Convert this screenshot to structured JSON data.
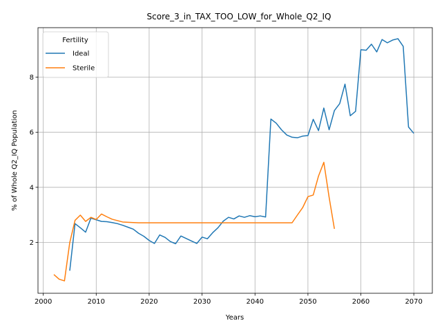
{
  "chart_data": {
    "type": "line",
    "title": "Score_3_in_TAX_TOO_LOW_for_Whole_Q2_IQ",
    "xlabel": "Years",
    "ylabel": "% of Whole Q2_IQ Population",
    "xlim": [
      1999,
      2073.5
    ],
    "ylim": [
      0.15,
      9.8
    ],
    "xticks": [
      2000,
      2010,
      2020,
      2030,
      2040,
      2050,
      2060,
      2070
    ],
    "yticks": [
      2,
      4,
      6,
      8
    ],
    "grid": true,
    "legend": {
      "title": "Fertility",
      "placement": "top-left"
    },
    "series": [
      {
        "name": "Ideal",
        "color": "#1f77b4",
        "x": [
          2005,
          2006,
          2007,
          2008,
          2009,
          2010,
          2011,
          2012,
          2013,
          2014,
          2015,
          2016,
          2017,
          2018,
          2019,
          2020,
          2021,
          2022,
          2023,
          2024,
          2025,
          2026,
          2027,
          2028,
          2029,
          2030,
          2031,
          2032,
          2033,
          2034,
          2035,
          2036,
          2037,
          2038,
          2039,
          2040,
          2041,
          2042,
          2043,
          2044,
          2045,
          2046,
          2047,
          2048,
          2049,
          2050,
          2051,
          2052,
          2053,
          2054,
          2055,
          2056,
          2057,
          2058,
          2059,
          2060,
          2061,
          2062,
          2063,
          2064,
          2065,
          2066,
          2067,
          2068,
          2069,
          2070
        ],
        "values": [
          0.97,
          2.68,
          2.53,
          2.37,
          2.88,
          2.82,
          2.76,
          2.75,
          2.72,
          2.68,
          2.62,
          2.55,
          2.48,
          2.33,
          2.22,
          2.07,
          1.96,
          2.27,
          2.18,
          2.03,
          1.95,
          2.23,
          2.14,
          2.05,
          1.96,
          2.19,
          2.13,
          2.35,
          2.53,
          2.77,
          2.91,
          2.85,
          2.96,
          2.91,
          2.97,
          2.93,
          2.96,
          2.92,
          6.48,
          6.33,
          6.09,
          5.9,
          5.82,
          5.8,
          5.86,
          5.88,
          6.47,
          6.06,
          6.88,
          6.09,
          6.79,
          7.04,
          7.75,
          6.6,
          6.76,
          9.0,
          8.98,
          9.2,
          8.92,
          9.37,
          9.25,
          9.35,
          9.4,
          9.12,
          6.19,
          5.96
        ]
      },
      {
        "name": "Sterile",
        "color": "#ff7f0e",
        "x": [
          2002,
          2003,
          2004,
          2005,
          2006,
          2007,
          2008,
          2009,
          2010,
          2011,
          2012,
          2013,
          2014,
          2015,
          2016,
          2017,
          2018,
          2019,
          2020,
          2021,
          2022,
          2023,
          2024,
          2025,
          2026,
          2027,
          2028,
          2029,
          2030,
          2031,
          2032,
          2033,
          2034,
          2035,
          2036,
          2037,
          2038,
          2039,
          2040,
          2041,
          2042,
          2043,
          2044,
          2045,
          2046,
          2047,
          2048,
          2049,
          2050,
          2051,
          2052,
          2053,
          2054,
          2055
        ],
        "values": [
          0.83,
          0.66,
          0.6,
          1.99,
          2.8,
          2.99,
          2.76,
          2.91,
          2.83,
          3.03,
          2.93,
          2.84,
          2.79,
          2.74,
          2.73,
          2.72,
          2.71,
          2.71,
          2.71,
          2.71,
          2.71,
          2.71,
          2.71,
          2.71,
          2.71,
          2.71,
          2.71,
          2.71,
          2.71,
          2.71,
          2.71,
          2.71,
          2.71,
          2.71,
          2.71,
          2.71,
          2.71,
          2.71,
          2.71,
          2.71,
          2.71,
          2.71,
          2.71,
          2.71,
          2.71,
          2.71,
          2.99,
          3.26,
          3.66,
          3.72,
          4.41,
          4.91,
          3.64,
          2.49
        ]
      }
    ]
  }
}
